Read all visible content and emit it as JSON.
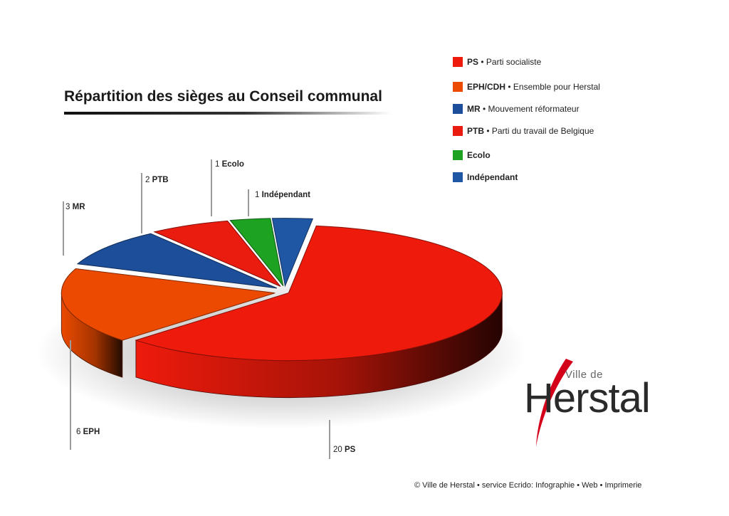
{
  "chart_data": {
    "type": "pie",
    "title": "Répartition des sièges au Conseil communal",
    "slices": [
      {
        "label": "PS",
        "value": 20,
        "color": "#ee1b0c"
      },
      {
        "label": "EPH",
        "value": 6,
        "color": "#ec4a00"
      },
      {
        "label": "MR",
        "value": 3,
        "color": "#1c4e9a"
      },
      {
        "label": "PTB",
        "value": 2,
        "color": "#ea1c10"
      },
      {
        "label": "Ecolo",
        "value": 1,
        "color": "#1da321"
      },
      {
        "label": "Indépendant",
        "value": 1,
        "color": "#1f57a5"
      }
    ],
    "callouts": [
      {
        "value": "20",
        "label": "PS"
      },
      {
        "value": "6",
        "label": "EPH"
      },
      {
        "value": "3",
        "label": "MR"
      },
      {
        "value": "2",
        "label": "PTB"
      },
      {
        "value": "1",
        "label": "Ecolo"
      },
      {
        "value": "1",
        "label": "Indépendant"
      }
    ],
    "legend": [
      {
        "code": "PS",
        "desc": "• Parti socialiste",
        "color": "#ee1b0c"
      },
      {
        "code": "EPH/CDH",
        "desc": "• Ensemble pour Herstal",
        "color": "#ec4a00"
      },
      {
        "code": "MR",
        "desc": "• Mouvement réformateur",
        "color": "#1c4e9a"
      },
      {
        "code": "PTB",
        "desc": "• Parti du travail de Belgique",
        "color": "#ea1c10"
      },
      {
        "code": "Ecolo",
        "desc": "",
        "color": "#1da321"
      },
      {
        "code": "Indépendant",
        "desc": "",
        "color": "#1f57a5"
      }
    ],
    "legend_position": "top-right"
  },
  "logo": {
    "small": "Ville de",
    "name": "Herstal"
  },
  "footer": "© Ville de Herstal • service Ecrido: Infographie • Web • Imprimerie"
}
